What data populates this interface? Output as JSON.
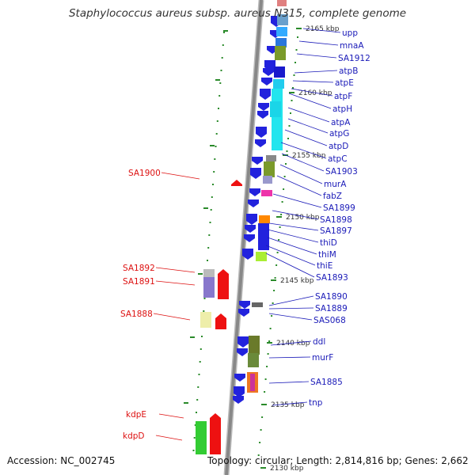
{
  "title": "Staphylococcus aureus subsp. aureus N315, complete genome",
  "footer": {
    "accession": "Accession: NC_002745",
    "topology": "Topology: circular; Length: 2,814,816 bp; Genes: 2,662"
  },
  "colors": {
    "forward_gene": "#2222dd",
    "reverse_gene": "#ee1111",
    "forward_label": "#1a1ab8",
    "reverse_label": "#dd1111",
    "backbone": "#888888",
    "tick": "#2a8a2a"
  },
  "scale_labels": [
    "2165 kbp",
    "2160 kbp",
    "2155 kbp",
    "2150 kbp",
    "2145 kbp",
    "2140 kbp",
    "2135 kbp",
    "2130 kbp"
  ],
  "right_labels": [
    "upp",
    "mnaA",
    "SA1912",
    "atpB",
    "atpE",
    "atpF",
    "atpH",
    "atpA",
    "atpG",
    "atpD",
    "atpC",
    "SA1903",
    "murA",
    "fabZ",
    "SA1899",
    "SA1898",
    "SA1897",
    "thiD",
    "thiM",
    "thiE",
    "SA1893",
    "SA1890",
    "SA1889",
    "SAS068",
    "ddl",
    "murF",
    "SA1885",
    "tnp"
  ],
  "left_labels": [
    "SA1900",
    "SA1892",
    "SA1891",
    "SA1888",
    "kdpE",
    "kdpD"
  ]
}
